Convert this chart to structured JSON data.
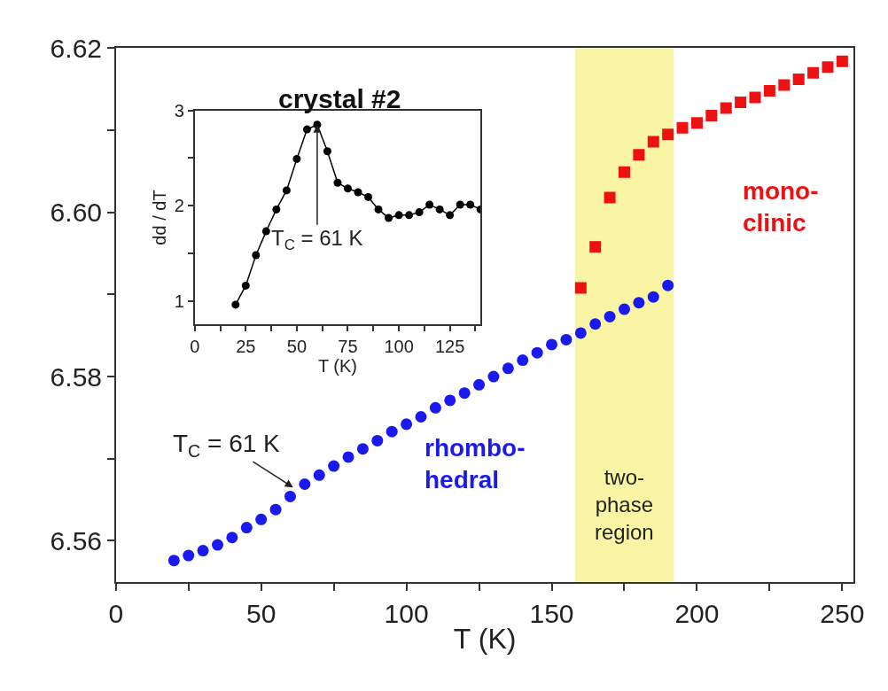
{
  "chart_data": [
    {
      "type": "scatter",
      "xlabel": "T (K)",
      "xlim": [
        0,
        254
      ],
      "ylim": [
        6.555,
        6.62
      ],
      "xticks": [
        0,
        {
          "value": 25,
          "label": null
        },
        50,
        {
          "value": 75,
          "label": null
        },
        100,
        {
          "value": 125,
          "label": null
        },
        150,
        {
          "value": 175,
          "label": null
        },
        200,
        {
          "value": 225,
          "label": null
        },
        250
      ],
      "yticks": [
        6.56,
        {
          "value": 6.57,
          "label": null
        },
        6.58,
        {
          "value": 6.59,
          "label": null
        },
        {
          "value": 6.6,
          "label": "6.60"
        },
        {
          "value": 6.61,
          "label": null
        },
        6.62
      ],
      "grid": false,
      "legend": false,
      "series": [
        {
          "name": "rhombo-\nhedral",
          "color": "#1a1aee",
          "marker": "circle",
          "x": [
            20,
            25,
            30,
            35,
            40,
            45,
            50,
            55,
            60,
            65,
            70,
            75,
            80,
            85,
            90,
            95,
            100,
            105,
            110,
            115,
            120,
            125,
            130,
            135,
            140,
            145,
            150,
            155,
            160,
            165,
            170,
            175,
            180,
            185,
            190
          ],
          "values": [
            6.5576,
            6.5582,
            6.5588,
            6.5595,
            6.5604,
            6.5616,
            6.5626,
            6.5638,
            6.5654,
            6.5669,
            6.568,
            6.5691,
            6.5702,
            6.5712,
            6.5722,
            6.5733,
            6.5742,
            6.5751,
            6.5762,
            6.5771,
            6.578,
            6.579,
            6.58,
            6.581,
            6.582,
            6.5829,
            6.5839,
            6.5845,
            6.5853,
            6.5864,
            6.5873,
            6.5882,
            6.589,
            6.5897,
            6.5911
          ]
        },
        {
          "name": "mono-\nclinic",
          "color": "#ee1111",
          "marker": "square",
          "x": [
            160,
            165,
            170,
            175,
            180,
            185,
            190,
            195,
            200,
            205,
            210,
            215,
            220,
            225,
            230,
            235,
            240,
            245,
            250
          ],
          "values": [
            6.5908,
            6.5958,
            6.6018,
            6.6049,
            6.607,
            6.6086,
            6.6095,
            6.6103,
            6.6109,
            6.6118,
            6.6127,
            6.6134,
            6.614,
            6.6148,
            6.6155,
            6.6162,
            6.617,
            6.6177,
            6.6184
          ]
        }
      ],
      "bands": [
        {
          "axis": "x",
          "from": 158,
          "to": 192,
          "label": "two-\nphase\nregion",
          "color": "#f9f5a5"
        }
      ],
      "annotations": [
        {
          "text": "T$_{C}$ = 61 K",
          "x": 61,
          "y": 6.5665
        }
      ]
    },
    {
      "type": "line",
      "title": "crystal #2",
      "xlabel": "T (K)",
      "ylabel": "dd / dT",
      "xlim": [
        0,
        140
      ],
      "ylim": [
        0.75,
        3
      ],
      "xticks": [
        0,
        {
          "value": 12.5,
          "label": null
        },
        25,
        {
          "value": 37.5,
          "label": null
        },
        50,
        {
          "value": 62.5,
          "label": null
        },
        75,
        {
          "value": 87.5,
          "label": null
        },
        100,
        {
          "value": 112.5,
          "label": null
        },
        125,
        {
          "value": 137.5,
          "label": null
        }
      ],
      "yticks": [
        1,
        {
          "value": 1.5,
          "label": null
        },
        2,
        {
          "value": 2.5,
          "label": null
        },
        3
      ],
      "grid": false,
      "legend": false,
      "marker": "circle",
      "line_style": "solid",
      "series": [
        {
          "color": "#000000",
          "x": [
            20,
            25,
            30,
            35,
            40,
            45,
            50,
            55,
            60,
            65,
            70,
            75,
            80,
            85,
            90,
            95,
            100,
            105,
            110,
            115,
            120,
            125,
            130,
            135,
            140
          ],
          "values": [
            0.96,
            1.16,
            1.48,
            1.73,
            1.96,
            2.16,
            2.49,
            2.8,
            2.85,
            2.57,
            2.24,
            2.18,
            2.14,
            2.09,
            1.96,
            1.87,
            1.9,
            1.9,
            1.93,
            2.01,
            1.96,
            1.9,
            2.01,
            2.01,
            1.96
          ]
        }
      ],
      "annotations": [
        {
          "text": "T$_{C}$ = 61 K",
          "x": 60,
          "y": 2.85
        }
      ]
    }
  ]
}
